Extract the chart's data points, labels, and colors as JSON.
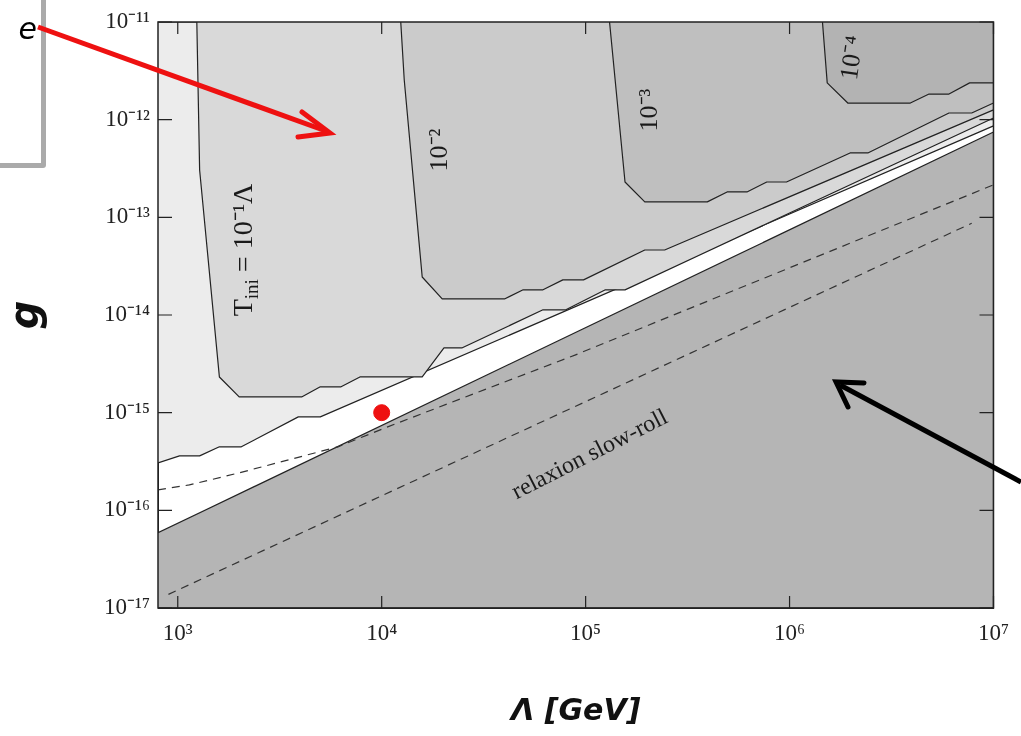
{
  "chart_data": {
    "type": "line",
    "xlabel": "Λ [GeV]",
    "ylabel": "g",
    "log": "xy",
    "grid": false,
    "legend": false,
    "xlim": [
      800,
      10000000
    ],
    "ylim": [
      1e-17,
      1e-11
    ],
    "xticks": [
      {
        "value": 1000,
        "label": "10³"
      },
      {
        "value": 10000,
        "label": "10⁴"
      },
      {
        "value": 100000,
        "label": "10⁵"
      },
      {
        "value": 1000000,
        "label": "10⁶"
      },
      {
        "value": 10000000,
        "label": "10⁷"
      }
    ],
    "yticks": [
      {
        "value": 1e-17,
        "label": "10⁻¹⁷"
      },
      {
        "value": 1e-16,
        "label": "10⁻¹⁶"
      },
      {
        "value": 1e-15,
        "label": "10⁻¹⁵"
      },
      {
        "value": 1e-14,
        "label": "10⁻¹⁴"
      },
      {
        "value": 1e-13,
        "label": "10⁻¹³"
      },
      {
        "value": 1e-12,
        "label": "10⁻¹²"
      },
      {
        "value": 1e-11,
        "label": "10⁻¹¹"
      }
    ],
    "series": [
      {
        "type": "area",
        "color": "#ececec",
        "x": [
          800,
          1020,
          1280,
          1600,
          2050,
          3900,
          5000,
          10000000,
          10000000,
          800
        ],
        "values": [
          3.06e-16,
          3.61e-16,
          3.61e-16,
          4.47e-16,
          4.47e-16,
          9.06e-16,
          9.06e-16,
          8.63e-13,
          1e-11,
          1e-11
        ]
      },
      {
        "type": "area",
        "color": "#d9d9d9",
        "x": [
          1240,
          1280,
          1600,
          2000,
          4050,
          5000,
          6320,
          7820,
          15800,
          20200,
          24700,
          61800,
          80000,
          125000,
          156000,
          10000000,
          10000000
        ],
        "values": [
          1e-11,
          3.05e-13,
          2.32e-15,
          1.45e-15,
          1.45e-15,
          1.84e-15,
          1.84e-15,
          2.32e-15,
          2.32e-15,
          4.6e-15,
          4.6e-15,
          1.13e-14,
          1.13e-14,
          1.81e-14,
          1.81e-14,
          1.04e-12,
          1e-11
        ]
      },
      {
        "type": "area",
        "color": "#cbcbcb",
        "x": [
          12400,
          12900,
          15800,
          19800,
          40000,
          49400,
          61800,
          77300,
          97700,
          195000,
          244000,
          10000000,
          10000000
        ],
        "values": [
          1e-11,
          2.55e-12,
          2.45e-14,
          1.46e-14,
          1.46e-14,
          1.81e-14,
          1.81e-14,
          2.29e-14,
          2.29e-14,
          4.63e-14,
          4.63e-14,
          1.26e-12,
          1e-11
        ]
      },
      {
        "type": "area",
        "color": "#bfbfbf",
        "x": [
          131000,
          156000,
          195000,
          395000,
          494000,
          618000,
          773000,
          966000,
          1980000,
          2420000,
          6050000,
          7820000,
          10000000,
          10000000
        ],
        "values": [
          1e-11,
          2.3e-13,
          1.44e-13,
          1.44e-13,
          1.82e-13,
          1.82e-13,
          2.3e-13,
          2.3e-13,
          4.56e-13,
          4.56e-13,
          1.17e-12,
          1.17e-12,
          1.48e-12,
          1e-11
        ]
      },
      {
        "type": "area",
        "color": "#b3b3b3",
        "x": [
          1450000,
          1530000,
          1930000,
          3910000,
          4830000,
          6050000,
          7640000,
          10000000,
          10000000
        ],
        "values": [
          1e-11,
          2.38e-12,
          1.48e-12,
          1.48e-12,
          1.83e-12,
          1.83e-12,
          2.38e-12,
          2.38e-12,
          1e-11
        ]
      },
      {
        "type": "area",
        "color": "#b5b5b5",
        "x": [
          800,
          10000000,
          10000000,
          800
        ],
        "values": [
          5.89e-17,
          7.48e-13,
          1e-17,
          1e-17
        ]
      },
      {
        "line_style": "dashed",
        "color": "#333333",
        "x": [
          800,
          1140,
          2000,
          3500,
          6100,
          10700,
          18700,
          89300,
          10000000
        ],
        "values": [
          1.62e-16,
          1.82e-16,
          2.42e-16,
          3.29e-16,
          4.47e-16,
          7.16e-16,
          1.12e-15,
          3.91e-15,
          2.15e-13
        ]
      },
      {
        "line_style": "dashed",
        "color": "#333333",
        "x": [
          900,
          7820000
        ],
        "values": [
          1.38e-17,
          8.7e-14
        ]
      },
      {
        "type": "scatter",
        "marker": "circle",
        "color": "#ee1111",
        "x": [
          10000
        ],
        "values": [
          1e-15
        ]
      }
    ],
    "annotations": [
      "e",
      "T$_{ini}$ = 10⁻¹Λ",
      "10⁻²",
      "10⁻³",
      "10⁻⁴",
      "relaxion slow-roll"
    ]
  }
}
